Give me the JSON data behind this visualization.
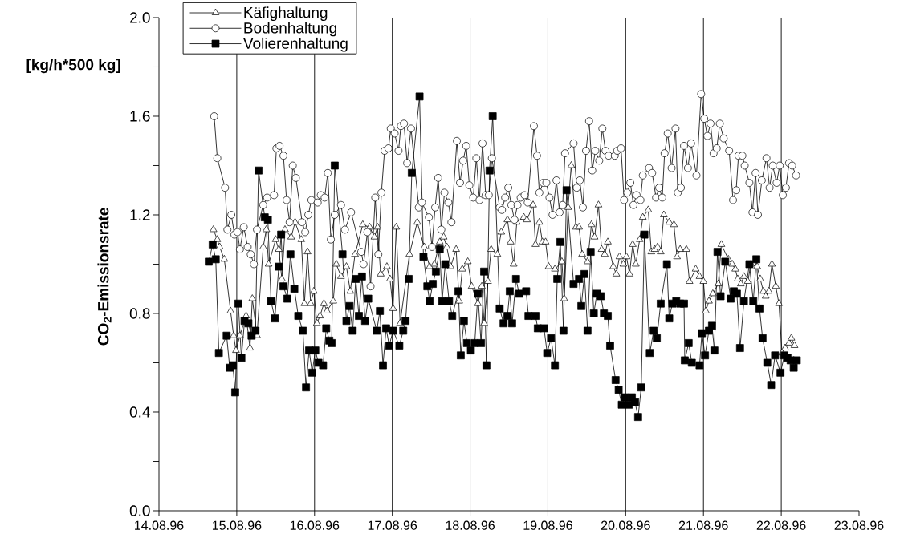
{
  "chart_data": {
    "type": "line",
    "ylabel": "CO$_{2}$-Emissionsrate",
    "annotations": [
      "[kg/h*500 kg]"
    ],
    "xlim": [
      "1996-08-14",
      "1996-08-23"
    ],
    "ylim": [
      0,
      2
    ],
    "xticks": [
      {
        "value": "1996-08-14",
        "label": "14.08.96"
      },
      {
        "value": "1996-08-15",
        "label": "15.08.96"
      },
      {
        "value": "1996-08-16",
        "label": "16.08.96"
      },
      {
        "value": "1996-08-17",
        "label": "17.08.96"
      },
      {
        "value": "1996-08-18",
        "label": "18.08.96"
      },
      {
        "value": "1996-08-19",
        "label": "19.08.96"
      },
      {
        "value": "1996-08-20",
        "label": "20.08.96"
      },
      {
        "value": "1996-08-21",
        "label": "21.08.96"
      },
      {
        "value": "1996-08-22",
        "label": "22.08.96"
      },
      {
        "value": "1996-08-23",
        "label": "23.08.96"
      }
    ],
    "yticks": [
      {
        "value": 0,
        "label": "0.0"
      },
      {
        "value": 0.2,
        "label": null
      },
      {
        "value": 0.4,
        "label": "0.4"
      },
      {
        "value": 0.6,
        "label": null
      },
      {
        "value": 0.8,
        "label": "0.8"
      },
      {
        "value": 1.0,
        "label": null
      },
      {
        "value": 1.2,
        "label": "1.2"
      },
      {
        "value": 1.4,
        "label": null
      },
      {
        "value": 1.6,
        "label": "1.6"
      },
      {
        "value": 1.8,
        "label": null
      },
      {
        "value": 2.0,
        "label": "2.0"
      }
    ],
    "ref_lines": [
      {
        "axis": "x",
        "value": "1996-08-15"
      },
      {
        "axis": "x",
        "value": "1996-08-16"
      },
      {
        "axis": "x",
        "value": "1996-08-17"
      },
      {
        "axis": "x",
        "value": "1996-08-18"
      },
      {
        "axis": "x",
        "value": "1996-08-19"
      },
      {
        "axis": "x",
        "value": "1996-08-20"
      },
      {
        "axis": "x",
        "value": "1996-08-21"
      },
      {
        "axis": "x",
        "value": "1996-08-22"
      }
    ],
    "legend": "top left",
    "line_style": "solid",
    "series": [
      {
        "name": "Käfighaltung",
        "color": "#000000",
        "marker": "triangle",
        "x": [
          "1996-08-14T16:48",
          "1996-08-14T18:00",
          "1996-08-14T18:43",
          "1996-08-14T20:10",
          "1996-08-14T22:05",
          "1996-08-14T23:02",
          "1996-08-14T23:46",
          "1996-08-15T00:58",
          "1996-08-15T02:53",
          "1996-08-15T04:05",
          "1996-08-15T04:48",
          "1996-08-15T06:14",
          "1996-08-15T08:10",
          "1996-08-15T09:07",
          "1996-08-15T09:50",
          "1996-08-15T12:00",
          "1996-08-15T12:58",
          "1996-08-15T13:55",
          "1996-08-15T14:53",
          "1996-08-15T16:48",
          "1996-08-15T18:00",
          "1996-08-15T19:55",
          "1996-08-15T20:53",
          "1996-08-15T21:50",
          "1996-08-15T22:48",
          "1996-08-15T23:46",
          "1996-08-16T00:43",
          "1996-08-16T01:41",
          "1996-08-16T02:53",
          "1996-08-16T03:50",
          "1996-08-16T05:46",
          "1996-08-16T06:43",
          "1996-08-16T08:10",
          "1996-08-16T09:50",
          "1996-08-16T11:02",
          "1996-08-16T12:29",
          "1996-08-16T14:53",
          "1996-08-16T17:02",
          "1996-08-16T18:29",
          "1996-08-16T19:26",
          "1996-08-16T20:24",
          "1996-08-16T22:19",
          "1996-08-16T23:17",
          "1996-08-17T00:14",
          "1996-08-17T01:12",
          "1996-08-17T02:24",
          "1996-08-17T05:17",
          "1996-08-17T07:41",
          "1996-08-17T09:50",
          "1996-08-17T11:31",
          "1996-08-17T12:58",
          "1996-08-17T14:38",
          "1996-08-17T15:50",
          "1996-08-17T16:48",
          "1996-08-17T18:00",
          "1996-08-17T19:41",
          "1996-08-17T20:38",
          "1996-08-17T21:36",
          "1996-08-17T23:17",
          "1996-08-18T00:29",
          "1996-08-18T02:24",
          "1996-08-18T03:36",
          "1996-08-18T04:19",
          "1996-08-18T05:31",
          "1996-08-18T06:29",
          "1996-08-18T08:24",
          "1996-08-18T09:36",
          "1996-08-18T11:31",
          "1996-08-18T12:29",
          "1996-08-18T13:26",
          "1996-08-18T14:24",
          "1996-08-18T16:34",
          "1996-08-18T17:31",
          "1996-08-18T19:26",
          "1996-08-18T20:10",
          "1996-08-18T21:22",
          "1996-08-18T22:19",
          "1996-08-18T23:17",
          "1996-08-19T00:14",
          "1996-08-19T02:10",
          "1996-08-19T04:19",
          "1996-08-19T05:02",
          "1996-08-19T06:14",
          "1996-08-19T07:12",
          "1996-08-19T08:38",
          "1996-08-19T09:36",
          "1996-08-19T10:34",
          "1996-08-19T12:14",
          "1996-08-19T13:26",
          "1996-08-19T14:24",
          "1996-08-19T15:36",
          "1996-08-19T16:34",
          "1996-08-19T17:31",
          "1996-08-19T18:29",
          "1996-08-19T20:10",
          "1996-08-19T21:07",
          "1996-08-19T22:05",
          "1996-08-19T23:17",
          "1996-08-20T00:14",
          "1996-08-20T01:12",
          "1996-08-20T02:10",
          "1996-08-20T03:07",
          "1996-08-20T04:19",
          "1996-08-20T05:17",
          "1996-08-20T06:58",
          "1996-08-20T07:55",
          "1996-08-20T08:53",
          "1996-08-20T09:50",
          "1996-08-20T10:48",
          "1996-08-20T11:46",
          "1996-08-20T13:26",
          "1996-08-20T14:53",
          "1996-08-20T15:50",
          "1996-08-20T16:48",
          "1996-08-20T18:43",
          "1996-08-20T19:41",
          "1996-08-20T21:36",
          "1996-08-20T22:48",
          "1996-08-21T00:00",
          "1996-08-21T00:43",
          "1996-08-21T01:41",
          "1996-08-21T02:53",
          "1996-08-21T04:34",
          "1996-08-21T05:31",
          "1996-08-21T07:41",
          "1996-08-21T08:53",
          "1996-08-21T09:50",
          "1996-08-21T10:34",
          "1996-08-21T11:31",
          "1996-08-21T12:29",
          "1996-08-21T13:41",
          "1996-08-21T14:38",
          "1996-08-21T16:34",
          "1996-08-21T17:31",
          "1996-08-21T18:29",
          "1996-08-21T19:12",
          "1996-08-21T20:10",
          "1996-08-21T21:07",
          "1996-08-21T22:19",
          "1996-08-21T23:17",
          "1996-08-22T00:14",
          "1996-08-22T01:12",
          "1996-08-22T02:24",
          "1996-08-22T03:07",
          "1996-08-22T04:05"
        ],
        "values": [
          1.14,
          1.1,
          1.07,
          1.02,
          0.81,
          0.71,
          0.65,
          0.71,
          0.79,
          0.66,
          0.86,
          0.71,
          1.07,
          1.14,
          1.0,
          1.1,
          1.06,
          0.94,
          1.14,
          1.11,
          1.17,
          1.1,
          0.84,
          1.05,
          0.84,
          0.89,
          0.76,
          0.79,
          0.84,
          0.81,
          0.85,
          1.0,
          0.95,
          0.99,
          0.89,
          1.04,
          1.16,
          1.15,
          1.11,
          1.15,
          0.96,
          0.99,
          0.94,
          0.82,
          1.15,
          0.76,
          1.04,
          1.17,
          1.07,
          0.99,
          1.0,
          1.09,
          1.11,
          1.07,
          0.99,
          1.06,
          0.85,
          0.98,
          1.01,
          0.91,
          0.84,
          0.91,
          0.76,
          0.93,
          1.06,
          1.04,
          1.13,
          1.18,
          1.09,
          1.0,
          1.17,
          1.19,
          1.18,
          1.24,
          1.08,
          1.17,
          1.09,
          1.09,
          0.99,
          0.98,
          1.01,
          0.86,
          1.23,
          1.4,
          1.15,
          1.15,
          1.04,
          1.01,
          1.16,
          1.11,
          1.24,
          1.06,
          1.04,
          1.09,
          0.99,
          0.96,
          1.03,
          1.0,
          1.03,
          0.96,
          1.08,
          1.0,
          1.1,
          1.19,
          1.22,
          1.05,
          1.06,
          1.07,
          1.05,
          1.2,
          1.17,
          1.16,
          1.03,
          1.06,
          1.06,
          0.93,
          0.98,
          0.95,
          0.93,
          0.81,
          0.85,
          0.88,
          0.92,
          1.08,
          1.02,
          1.0,
          0.98,
          0.94,
          0.92,
          0.95,
          0.93,
          1.0,
          0.99,
          0.94,
          0.89,
          0.87,
          0.89,
          1.0,
          0.91,
          0.84,
          0.64,
          0.66,
          0.68,
          0.7,
          0.67
        ]
      },
      {
        "name": "Bodenhaltung",
        "color": "#000000",
        "marker": "circle",
        "x": [
          "1996-08-14T17:02",
          "1996-08-14T18:00",
          "1996-08-14T20:24",
          "1996-08-14T21:07",
          "1996-08-14T22:19",
          "1996-08-14T23:17",
          "1996-08-15T00:14",
          "1996-08-15T00:58",
          "1996-08-15T02:10",
          "1996-08-15T03:22",
          "1996-08-15T04:19",
          "1996-08-15T05:17",
          "1996-08-15T06:14",
          "1996-08-15T08:10",
          "1996-08-15T09:22",
          "1996-08-15T11:31",
          "1996-08-15T12:14",
          "1996-08-15T13:12",
          "1996-08-15T14:24",
          "1996-08-15T15:22",
          "1996-08-15T16:19",
          "1996-08-15T17:17",
          "1996-08-15T18:14",
          "1996-08-15T20:10",
          "1996-08-15T21:07",
          "1996-08-15T22:05",
          "1996-08-15T23:02",
          "1996-08-16T00:58",
          "1996-08-16T01:55",
          "1996-08-16T03:07",
          "1996-08-16T04:05",
          "1996-08-16T05:02",
          "1996-08-16T06:14",
          "1996-08-16T08:10",
          "1996-08-16T09:22",
          "1996-08-16T11:17",
          "1996-08-16T14:24",
          "1996-08-16T15:07",
          "1996-08-16T16:19",
          "1996-08-16T17:17",
          "1996-08-16T18:43",
          "1996-08-16T19:41",
          "1996-08-16T20:38",
          "1996-08-16T21:36",
          "1996-08-16T22:48",
          "1996-08-16T23:31",
          "1996-08-17T00:43",
          "1996-08-17T01:55",
          "1996-08-17T02:38",
          "1996-08-17T03:36",
          "1996-08-17T04:34",
          "1996-08-17T05:46",
          "1996-08-17T08:10",
          "1996-08-17T09:07",
          "1996-08-17T11:17",
          "1996-08-17T12:14",
          "1996-08-17T13:12",
          "1996-08-17T14:10",
          "1996-08-17T15:07",
          "1996-08-17T16:05",
          "1996-08-17T17:17",
          "1996-08-17T18:14",
          "1996-08-17T19:55",
          "1996-08-17T20:53",
          "1996-08-17T21:50",
          "1996-08-17T22:48",
          "1996-08-17T23:46",
          "1996-08-18T00:58",
          "1996-08-18T01:55",
          "1996-08-18T02:53",
          "1996-08-18T03:50",
          "1996-08-18T04:48",
          "1996-08-18T05:46",
          "1996-08-18T06:43",
          "1996-08-18T09:07",
          "1996-08-18T09:50",
          "1996-08-18T10:48",
          "1996-08-18T11:46",
          "1996-08-18T12:43",
          "1996-08-18T13:41",
          "1996-08-18T14:38",
          "1996-08-18T15:36",
          "1996-08-18T16:48",
          "1996-08-18T17:46",
          "1996-08-18T19:41",
          "1996-08-18T20:38",
          "1996-08-18T21:22",
          "1996-08-18T22:34",
          "1996-08-18T23:31",
          "1996-08-19T00:29",
          "1996-08-19T01:26",
          "1996-08-19T02:38",
          "1996-08-19T03:36",
          "1996-08-19T04:34",
          "1996-08-19T05:17",
          "1996-08-19T07:55",
          "1996-08-19T08:53",
          "1996-08-19T09:50",
          "1996-08-19T10:48",
          "1996-08-19T11:46",
          "1996-08-19T12:43",
          "1996-08-19T13:41",
          "1996-08-19T14:38",
          "1996-08-19T15:50",
          "1996-08-19T16:48",
          "1996-08-19T17:46",
          "1996-08-19T18:43",
          "1996-08-19T20:38",
          "1996-08-19T21:22",
          "1996-08-19T22:34",
          "1996-08-19T23:31",
          "1996-08-20T00:29",
          "1996-08-20T01:26",
          "1996-08-20T02:24",
          "1996-08-20T03:22",
          "1996-08-20T04:34",
          "1996-08-20T05:17",
          "1996-08-20T07:12",
          "1996-08-20T08:10",
          "1996-08-20T09:22",
          "1996-08-20T10:19",
          "1996-08-20T11:17",
          "1996-08-20T12:00",
          "1996-08-20T12:58",
          "1996-08-20T14:10",
          "1996-08-20T15:22",
          "1996-08-20T16:05",
          "1996-08-20T17:02",
          "1996-08-20T18:00",
          "1996-08-20T19:12",
          "1996-08-20T20:10",
          "1996-08-20T21:50",
          "1996-08-20T23:17",
          "1996-08-21T00:14",
          "1996-08-21T01:12",
          "1996-08-21T02:10",
          "1996-08-21T03:07",
          "1996-08-21T04:05",
          "1996-08-21T05:02",
          "1996-08-21T06:14",
          "1996-08-21T07:55",
          "1996-08-21T09:07",
          "1996-08-21T10:05",
          "1996-08-21T10:48",
          "1996-08-21T12:00",
          "1996-08-21T12:43",
          "1996-08-21T14:10",
          "1996-08-21T15:07",
          "1996-08-21T16:05",
          "1996-08-21T16:48",
          "1996-08-21T18:00",
          "1996-08-21T19:26",
          "1996-08-21T20:24",
          "1996-08-21T21:22",
          "1996-08-21T22:34",
          "1996-08-21T23:31",
          "1996-08-22T00:29",
          "1996-08-22T01:26",
          "1996-08-22T02:24",
          "1996-08-22T03:22",
          "1996-08-22T04:34"
        ],
        "values": [
          1.6,
          1.43,
          1.31,
          1.14,
          1.2,
          1.12,
          1.13,
          1.06,
          1.15,
          1.07,
          1.04,
          1.0,
          1.14,
          1.24,
          1.27,
          1.28,
          1.47,
          1.48,
          1.44,
          1.26,
          1.17,
          1.4,
          1.35,
          1.17,
          1.13,
          1.2,
          1.26,
          1.25,
          1.28,
          1.27,
          1.37,
          1.1,
          1.2,
          1.24,
          1.14,
          1.21,
          1.05,
          1.0,
          1.13,
          0.91,
          1.27,
          1.04,
          1.29,
          1.46,
          1.47,
          1.55,
          1.53,
          1.46,
          1.56,
          1.57,
          1.41,
          1.55,
          1.23,
          1.25,
          1.19,
          1.07,
          1.23,
          1.35,
          1.14,
          1.29,
          1.25,
          1.17,
          1.5,
          1.33,
          1.42,
          1.48,
          1.32,
          1.27,
          1.43,
          1.26,
          1.49,
          1.28,
          1.28,
          1.43,
          1.23,
          1.22,
          1.27,
          1.31,
          1.24,
          1.18,
          1.24,
          1.27,
          1.28,
          1.25,
          1.56,
          1.44,
          1.29,
          1.33,
          1.33,
          1.27,
          1.2,
          1.34,
          1.21,
          1.24,
          1.45,
          1.49,
          1.31,
          1.34,
          1.23,
          1.46,
          1.58,
          1.38,
          1.46,
          1.42,
          1.55,
          1.46,
          1.44,
          1.44,
          1.46,
          1.47,
          1.26,
          1.29,
          1.33,
          1.24,
          1.28,
          1.26,
          1.36,
          1.39,
          1.37,
          1.27,
          1.31,
          1.27,
          1.45,
          1.53,
          1.39,
          1.55,
          1.29,
          1.31,
          1.48,
          1.39,
          1.49,
          1.36,
          1.69,
          1.59,
          1.52,
          1.57,
          1.45,
          1.47,
          1.57,
          1.51,
          1.46,
          1.26,
          1.3,
          1.44,
          1.44,
          1.4,
          1.33,
          1.21,
          1.37,
          1.2,
          1.34,
          1.43,
          1.31,
          1.4,
          1.33,
          1.4,
          1.28,
          1.31,
          1.41,
          1.4,
          1.36
        ]
      },
      {
        "name": "Volierenhaltung",
        "color": "#000000",
        "marker": "square",
        "x": [
          "1996-08-14T15:22",
          "1996-08-14T16:34",
          "1996-08-14T17:31",
          "1996-08-14T18:29",
          "1996-08-14T20:53",
          "1996-08-14T21:50",
          "1996-08-14T22:48",
          "1996-08-14T23:31",
          "1996-08-15T00:29",
          "1996-08-15T01:26",
          "1996-08-15T02:24",
          "1996-08-15T03:36",
          "1996-08-15T04:34",
          "1996-08-15T05:46",
          "1996-08-15T06:43",
          "1996-08-15T08:38",
          "1996-08-15T09:36",
          "1996-08-15T10:34",
          "1996-08-15T11:46",
          "1996-08-15T12:58",
          "1996-08-15T13:41",
          "1996-08-15T14:24",
          "1996-08-15T15:36",
          "1996-08-15T16:34",
          "1996-08-15T17:46",
          "1996-08-15T18:58",
          "1996-08-15T20:24",
          "1996-08-15T21:22",
          "1996-08-15T22:19",
          "1996-08-15T23:17",
          "1996-08-16T00:14",
          "1996-08-16T01:12",
          "1996-08-16T02:38",
          "1996-08-16T03:36",
          "1996-08-16T04:34",
          "1996-08-16T05:17",
          "1996-08-16T06:14",
          "1996-08-16T08:38",
          "1996-08-16T09:50",
          "1996-08-16T10:48",
          "1996-08-16T11:46",
          "1996-08-16T12:43",
          "1996-08-16T13:41",
          "1996-08-16T14:38",
          "1996-08-16T15:36",
          "1996-08-16T16:34",
          "1996-08-16T19:12",
          "1996-08-16T20:10",
          "1996-08-16T21:07",
          "1996-08-16T22:05",
          "1996-08-16T23:02",
          "1996-08-17T00:14",
          "1996-08-17T02:10",
          "1996-08-17T03:22",
          "1996-08-17T04:05",
          "1996-08-17T05:02",
          "1996-08-17T06:00",
          "1996-08-17T08:24",
          "1996-08-17T09:36",
          "1996-08-17T10:48",
          "1996-08-17T11:31",
          "1996-08-17T12:29",
          "1996-08-17T13:26",
          "1996-08-17T14:38",
          "1996-08-17T15:22",
          "1996-08-17T16:19",
          "1996-08-17T17:31",
          "1996-08-17T18:29",
          "1996-08-17T20:24",
          "1996-08-17T21:07",
          "1996-08-17T22:05",
          "1996-08-17T23:02",
          "1996-08-18T00:14",
          "1996-08-18T01:26",
          "1996-08-18T02:24",
          "1996-08-18T03:22",
          "1996-08-18T04:19",
          "1996-08-18T05:02",
          "1996-08-18T06:00",
          "1996-08-18T06:58",
          "1996-08-18T09:07",
          "1996-08-18T10:19",
          "1996-08-18T11:31",
          "1996-08-18T12:14",
          "1996-08-18T12:58",
          "1996-08-18T14:10",
          "1996-08-18T15:07",
          "1996-08-18T17:17",
          "1996-08-18T18:00",
          "1996-08-18T20:10",
          "1996-08-18T20:53",
          "1996-08-18T22:48",
          "1996-08-18T23:46",
          "1996-08-19T00:58",
          "1996-08-19T02:10",
          "1996-08-19T02:53",
          "1996-08-19T03:50",
          "1996-08-19T04:48",
          "1996-08-19T05:46",
          "1996-08-19T07:55",
          "1996-08-19T09:36",
          "1996-08-19T10:19",
          "1996-08-19T11:17",
          "1996-08-19T12:14",
          "1996-08-19T13:12",
          "1996-08-19T14:10",
          "1996-08-19T15:07",
          "1996-08-19T16:19",
          "1996-08-19T17:17",
          "1996-08-19T18:29",
          "1996-08-19T19:12",
          "1996-08-19T20:53",
          "1996-08-19T21:50",
          "1996-08-19T22:48",
          "1996-08-19T23:46",
          "1996-08-20T00:58",
          "1996-08-20T01:55",
          "1996-08-20T02:53",
          "1996-08-20T03:50",
          "1996-08-20T04:48",
          "1996-08-20T05:46",
          "1996-08-20T07:26",
          "1996-08-20T08:38",
          "1996-08-20T09:36",
          "1996-08-20T10:48",
          "1996-08-20T12:43",
          "1996-08-20T13:26",
          "1996-08-20T14:24",
          "1996-08-20T15:36",
          "1996-08-20T16:48",
          "1996-08-20T18:00",
          "1996-08-20T18:14",
          "1996-08-20T19:26",
          "1996-08-20T20:24",
          "1996-08-20T22:48",
          "1996-08-20T23:31",
          "1996-08-21T00:29",
          "1996-08-21T01:41",
          "1996-08-21T02:38",
          "1996-08-21T03:22",
          "1996-08-21T04:19",
          "1996-08-21T05:17",
          "1996-08-21T06:43",
          "1996-08-21T08:24",
          "1996-08-21T09:22",
          "1996-08-21T10:19",
          "1996-08-21T11:17",
          "1996-08-21T12:29",
          "1996-08-21T14:10",
          "1996-08-21T15:22",
          "1996-08-21T16:19",
          "1996-08-21T17:17",
          "1996-08-21T18:14",
          "1996-08-21T19:41",
          "1996-08-21T20:53",
          "1996-08-21T22:05",
          "1996-08-21T23:46",
          "1996-08-22T00:58",
          "1996-08-22T01:55",
          "1996-08-22T02:53",
          "1996-08-22T03:50",
          "1996-08-22T04:48"
        ],
        "values": [
          1.01,
          1.08,
          1.02,
          0.64,
          0.71,
          0.58,
          0.59,
          0.48,
          0.84,
          0.62,
          0.77,
          0.76,
          0.71,
          0.73,
          1.38,
          1.19,
          1.18,
          0.85,
          0.78,
          0.99,
          1.12,
          0.91,
          0.86,
          1.04,
          0.9,
          0.79,
          0.73,
          0.5,
          0.65,
          0.56,
          0.65,
          0.6,
          0.59,
          0.74,
          0.69,
          0.68,
          1.4,
          1.04,
          0.77,
          0.83,
          0.73,
          0.94,
          0.79,
          0.95,
          0.77,
          0.86,
          0.73,
          0.81,
          0.59,
          0.74,
          0.67,
          0.73,
          0.67,
          0.73,
          0.77,
          0.94,
          1.37,
          1.68,
          1.03,
          0.91,
          0.85,
          0.92,
          0.97,
          1.06,
          0.85,
          1.0,
          0.85,
          0.79,
          0.89,
          0.63,
          0.77,
          0.68,
          0.65,
          0.68,
          0.88,
          0.68,
          0.97,
          0.59,
          1.38,
          1.6,
          0.82,
          0.76,
          0.79,
          0.89,
          0.76,
          0.94,
          0.88,
          0.89,
          0.79,
          0.79,
          0.74,
          0.74,
          0.64,
          0.7,
          0.59,
          0.94,
          1.09,
          0.73,
          1.3,
          0.92,
          0.94,
          0.83,
          0.96,
          0.73,
          1.05,
          0.8,
          0.88,
          0.87,
          0.8,
          0.79,
          0.67,
          0.53,
          0.49,
          0.43,
          0.46,
          0.43,
          0.46,
          0.44,
          0.38,
          0.5,
          1.12,
          0.64,
          0.73,
          0.7,
          0.84,
          1.0,
          0.78,
          0.84,
          0.85,
          0.84,
          0.84,
          0.61,
          0.68,
          0.6,
          0.59,
          0.72,
          0.63,
          0.73,
          0.75,
          0.65,
          1.05,
          0.87,
          1.01,
          0.86,
          0.89,
          0.88,
          0.66,
          0.85,
          1.0,
          0.85,
          1.02,
          0.82,
          0.7,
          0.6,
          0.51,
          0.63,
          0.56,
          0.63,
          0.62,
          0.61,
          0.58,
          0.61
        ]
      }
    ]
  }
}
